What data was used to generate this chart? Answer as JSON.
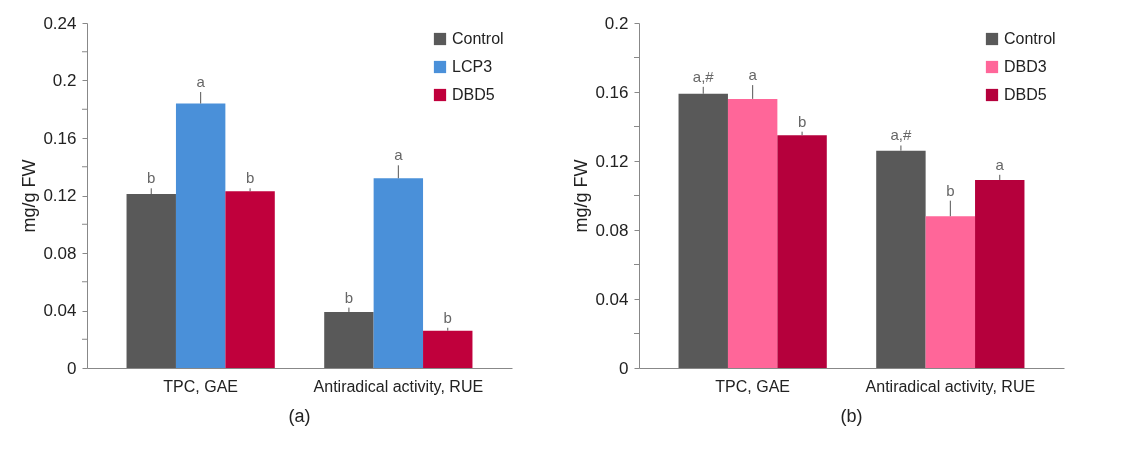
{
  "chart_data": [
    {
      "type": "bar",
      "title": "(a)",
      "ylabel": "mg/g FW",
      "categories": [
        "TPC, GAE",
        "Antiradical activity, RUE"
      ],
      "series": [
        {
          "name": "Control",
          "color": "#595959",
          "values": [
            0.121,
            0.039
          ],
          "errors": [
            0.004,
            0.003
          ]
        },
        {
          "name": "LCP3",
          "color": "#4a90d9",
          "values": [
            0.184,
            0.132
          ],
          "errors": [
            0.008,
            0.009
          ]
        },
        {
          "name": "DBD5",
          "color": "#c0003c",
          "values": [
            0.123,
            0.026
          ],
          "errors": [
            0.002,
            0.002
          ]
        }
      ],
      "ylim": [
        0,
        0.24
      ],
      "yticks": [
        0,
        {
          "value": 0.02,
          "label": null
        },
        0.04,
        {
          "value": 0.06,
          "label": null
        },
        0.08,
        {
          "value": 0.1,
          "label": null
        },
        0.12,
        {
          "value": 0.14,
          "label": null
        },
        0.16,
        {
          "value": 0.18,
          "label": null
        },
        0.2,
        {
          "value": 0.22,
          "label": null
        },
        0.24
      ],
      "grid": false,
      "legend": "top right",
      "annotations": [
        "b",
        "a",
        "b",
        "b",
        "a",
        "b"
      ]
    },
    {
      "type": "bar",
      "title": "(b)",
      "ylabel": "mg/g FW",
      "categories": [
        "TPC, GAE",
        "Antiradical activity, RUE"
      ],
      "series": [
        {
          "name": "Control",
          "color": "#595959",
          "values": [
            0.159,
            0.126
          ],
          "errors": [
            0.004,
            0.003
          ]
        },
        {
          "name": "DBD3",
          "color": "#ff6699",
          "values": [
            0.156,
            0.088
          ],
          "errors": [
            0.008,
            0.009
          ]
        },
        {
          "name": "DBD5",
          "color": "#b5003c",
          "values": [
            0.135,
            0.109
          ],
          "errors": [
            0.002,
            0.003
          ]
        }
      ],
      "ylim": [
        0,
        0.2
      ],
      "yticks": [
        0,
        {
          "value": 0.02,
          "label": null
        },
        0.04,
        {
          "value": 0.06,
          "label": null
        },
        0.08,
        {
          "value": 0.1,
          "label": null
        },
        0.12,
        {
          "value": 0.14,
          "label": null
        },
        0.16,
        {
          "value": 0.18,
          "label": null
        },
        0.2
      ],
      "grid": false,
      "legend": "top right",
      "annotations": [
        "a,#",
        "a",
        "b",
        "a,#",
        "b",
        "a"
      ]
    }
  ]
}
